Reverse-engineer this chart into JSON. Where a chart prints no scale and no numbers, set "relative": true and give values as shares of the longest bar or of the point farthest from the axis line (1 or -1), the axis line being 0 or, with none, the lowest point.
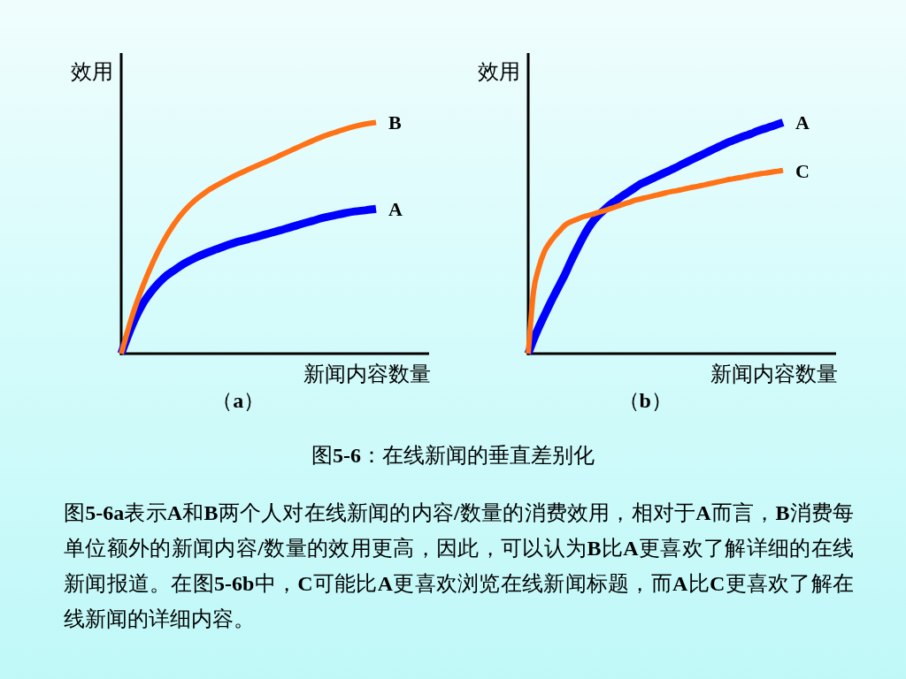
{
  "chart_data": [
    {
      "type": "line",
      "title": "（a）",
      "xlabel": "新闻内容数量",
      "ylabel": "效用",
      "relative": true,
      "categories": [
        null,
        null,
        null,
        null,
        null,
        null,
        null,
        null,
        null,
        null,
        null,
        null,
        null,
        null,
        null,
        null,
        null,
        null,
        null,
        null,
        null,
        null,
        null,
        null,
        null,
        null,
        null,
        null,
        null,
        null
      ],
      "series": [
        {
          "name": "A",
          "color": "#0000ff",
          "values": [
            0,
            0.119,
            0.213,
            0.278,
            0.327,
            0.361,
            0.391,
            0.415,
            0.435,
            0.452,
            0.469,
            0.484,
            0.496,
            0.508,
            0.521,
            0.534,
            0.547,
            0.561,
            0.574,
            0.587,
            0.597,
            0.607,
            0.615,
            0.62,
            0.626,
            null,
            null,
            null,
            null,
            null
          ]
        },
        {
          "name": "B",
          "color": "#ff7216",
          "values": [
            0,
            0.158,
            0.287,
            0.397,
            0.488,
            0.562,
            0.62,
            0.665,
            0.7,
            0.728,
            0.753,
            0.776,
            0.797,
            0.817,
            0.837,
            0.858,
            0.879,
            0.9,
            0.92,
            0.939,
            0.955,
            0.97,
            0.983,
            0.993,
            1,
            null,
            null,
            null,
            null,
            null
          ]
        }
      ]
    },
    {
      "type": "line",
      "title": "（b）",
      "xlabel": "新闻内容数量",
      "ylabel": "效用",
      "relative": true,
      "categories": [
        null,
        null,
        null,
        null,
        null,
        null,
        null,
        null,
        null,
        null,
        null,
        null,
        null,
        null,
        null,
        null,
        null,
        null,
        null,
        null,
        null,
        null,
        null,
        null,
        null,
        null,
        null,
        null,
        null,
        null,
        null,
        null,
        null,
        null,
        null,
        null,
        null,
        null,
        null,
        null,
        null,
        null,
        null,
        null,
        null,
        null,
        null,
        null,
        null,
        null,
        null,
        null,
        null,
        null,
        null,
        null,
        null,
        null,
        null
      ],
      "series": [
        {
          "name": "A",
          "color": "#0000ff",
          "values": [
            0,
            0.06,
            0.114,
            0.163,
            0.211,
            0.257,
            0.301,
            0.346,
            0.397,
            0.444,
            0.489,
            0.531,
            0.566,
            0.593,
            0.615,
            0.636,
            0.654,
            0.67,
            0.686,
            0.701,
            0.716,
            0.732,
            0.742,
            0.753,
            0.764,
            0.775,
            0.785,
            0.796,
            0.807,
            0.819,
            0.83,
            0.841,
            0.852,
            0.863,
            0.874,
            0.885,
            0.896,
            0.907,
            0.917,
            0.926,
            0.935,
            0.943,
            0.951,
            0.961,
            0.969,
            0.976,
            0.984,
            0.992,
            1,
            null,
            null,
            null,
            null,
            null,
            null,
            null,
            null,
            null,
            null
          ]
        },
        {
          "name": "C",
          "color": "#ff7216",
          "values": [
            0,
            0.268,
            0.372,
            0.439,
            0.478,
            0.508,
            0.533,
            0.557,
            0.57,
            0.579,
            0.589,
            0.596,
            0.602,
            0.609,
            0.616,
            0.623,
            0.631,
            0.639,
            0.647,
            0.654,
            0.663,
            0.668,
            0.674,
            0.679,
            0.685,
            0.69,
            0.696,
            0.701,
            0.705,
            0.71,
            0.715,
            0.72,
            0.724,
            0.729,
            0.734,
            0.739,
            0.744,
            0.749,
            0.754,
            0.758,
            0.762,
            0.766,
            0.771,
            0.775,
            0.779,
            0.782,
            0.786,
            0.789,
            0.793,
            null,
            null,
            null,
            null,
            null,
            null,
            null,
            null,
            null,
            null
          ]
        }
      ]
    },
    {
      "type": "other",
      "title": "图5-6：在线新闻的垂直差别化",
      "annotations": [
        "图5-6a表示A和B两个人对在线新闻的内容/数量的消费效用，相对于A而言，B消费每单位额外的新闻内容/数量的效用更高，因此，可以认为B比A更喜欢了解详细的在线新闻报道。在图5-6b中，C可能比A更喜欢浏览在线新闻标题，而A比C更喜欢了解在线新闻的详细内容。"
      ]
    }
  ]
}
